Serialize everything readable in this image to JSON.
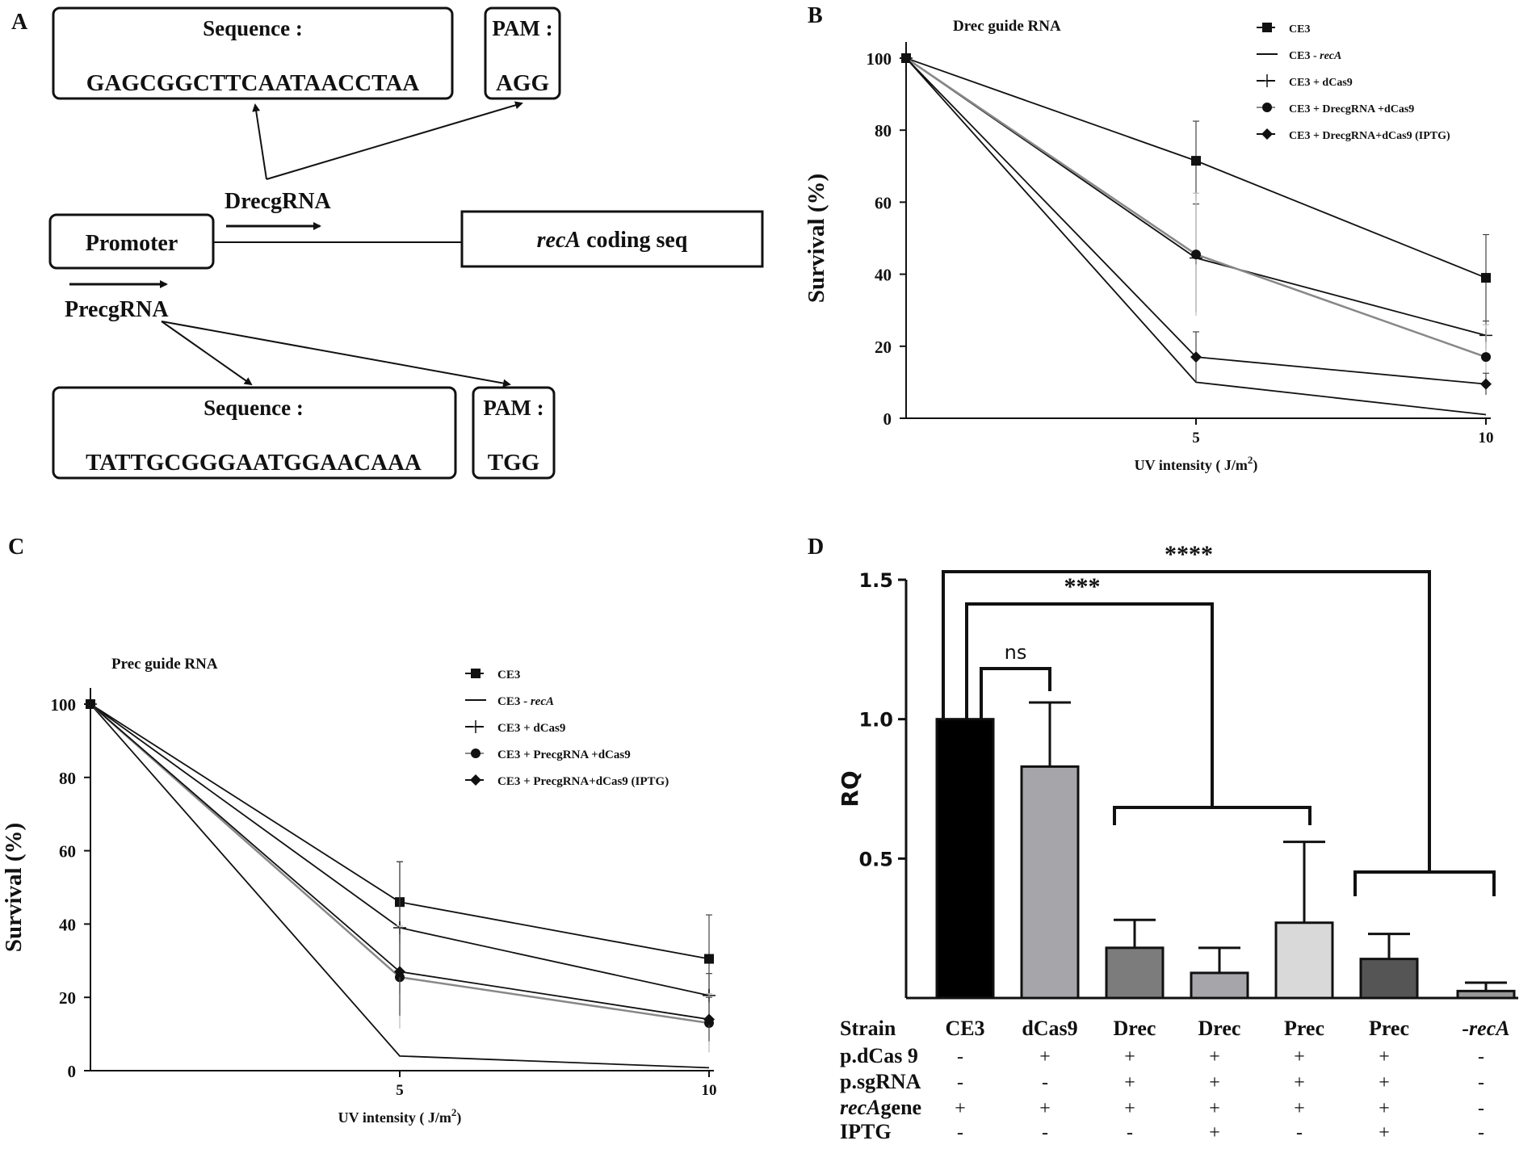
{
  "panel_labels": {
    "a": "A",
    "b": "B",
    "c": "C",
    "d": "D"
  },
  "diagram": {
    "top_sequence": {
      "label": "Sequence :",
      "value": "GAGCGGCTTCAATAACCTAA"
    },
    "top_pam": {
      "label": "PAM :",
      "value": "AGG"
    },
    "drec_label": "DrecgRNA",
    "promoter": "Promoter",
    "coding_italic": "recA",
    "coding_rest": " coding seq",
    "prec_label": "PrecgRNA",
    "bottom_sequence": {
      "label": "Sequence :",
      "value": "TATTGCGGGAATGGAACAAA"
    },
    "bottom_pam": {
      "label": "PAM :",
      "value": "TGG"
    }
  },
  "chart_data": [
    {
      "panel": "B",
      "type": "line",
      "title": "Drec guide RNA",
      "xlabel": "UV intensity ( J/m",
      "xlabel_sup": "2",
      "xlabel_end": ")",
      "ylabel": "Survival (%)",
      "x": [
        0,
        5,
        10
      ],
      "xticks": [
        "5",
        "10"
      ],
      "xtick_values": [
        5,
        10
      ],
      "ylim": [
        0,
        100
      ],
      "yticks": [
        "0",
        "20",
        "40",
        "60",
        "80",
        "100"
      ],
      "legend_position": "top-right",
      "series": [
        {
          "name": "CE3",
          "name_italic": "",
          "marker": "square",
          "color": "#111111",
          "values": [
            100,
            71.5,
            39
          ],
          "err": [
            0,
            11,
            12
          ]
        },
        {
          "name": "CE3 - ",
          "name_italic": "recA",
          "marker": "none",
          "color": "#111111",
          "values": [
            100,
            10,
            1
          ],
          "err": [
            0,
            0,
            0
          ]
        },
        {
          "name": "CE3 + dCas9",
          "name_italic": "",
          "marker": "plus",
          "color": "#111111",
          "values": [
            100,
            44.5,
            23
          ],
          "err": [
            0,
            15,
            4
          ]
        },
        {
          "name": "CE3 + DrecgRNA +dCas9",
          "name_italic": "",
          "marker": "circle",
          "color": "#888888",
          "values": [
            100,
            45.5,
            17
          ],
          "err": [
            0,
            17,
            9
          ]
        },
        {
          "name": "CE3 + DrecgRNA+dCas9  (IPTG)",
          "name_italic": "",
          "marker": "diamond",
          "color": "#111111",
          "values": [
            100,
            17,
            9.5
          ],
          "err": [
            0,
            7,
            3
          ]
        }
      ]
    },
    {
      "panel": "C",
      "type": "line",
      "title": "Prec guide RNA",
      "xlabel": "UV intensity ( J/m",
      "xlabel_sup": "2",
      "xlabel_end": ")",
      "ylabel": "Survival (%)",
      "x": [
        0,
        5,
        10
      ],
      "xticks": [
        "5",
        "10"
      ],
      "xtick_values": [
        5,
        10
      ],
      "ylim": [
        0,
        100
      ],
      "yticks": [
        "0",
        "20",
        "40",
        "60",
        "80",
        "100"
      ],
      "legend_position": "top-right",
      "series": [
        {
          "name": "CE3",
          "name_italic": "",
          "marker": "square",
          "color": "#111111",
          "values": [
            100,
            46,
            30.5
          ],
          "err": [
            0,
            11,
            12
          ]
        },
        {
          "name": "CE3 - ",
          "name_italic": "recA",
          "marker": "none",
          "color": "#111111",
          "values": [
            100,
            4,
            0.8
          ],
          "err": [
            0,
            0,
            0
          ]
        },
        {
          "name": "CE3 + dCas9",
          "name_italic": "",
          "marker": "plus",
          "color": "#111111",
          "values": [
            100,
            39,
            20.5
          ],
          "err": [
            0,
            18,
            6
          ]
        },
        {
          "name": "CE3 + PrecgRNA +dCas9",
          "name_italic": "",
          "marker": "circle",
          "color": "#888888",
          "values": [
            100,
            25.5,
            13
          ],
          "err": [
            0,
            14,
            8
          ]
        },
        {
          "name": "CE3 + PrecgRNA+dCas9  (IPTG)",
          "name_italic": "",
          "marker": "diamond",
          "color": "#111111",
          "values": [
            100,
            27,
            14
          ],
          "err": [
            0,
            12,
            6
          ]
        }
      ]
    },
    {
      "panel": "D",
      "type": "bar",
      "ylabel": "RQ",
      "ylim": [
        0,
        1.5
      ],
      "yticks": [
        "0.5",
        "1.0",
        "1.5"
      ],
      "ytick_values": [
        0.5,
        1.0,
        1.5
      ],
      "categories": [
        "CE3",
        "dCas9",
        "Drec",
        "Drec",
        "Prec",
        "Prec",
        "-recA"
      ],
      "category_italic": [
        false,
        false,
        false,
        false,
        false,
        false,
        true
      ],
      "values": [
        1.0,
        0.83,
        0.18,
        0.09,
        0.27,
        0.14,
        0.025
      ],
      "errors": [
        0,
        0.23,
        0.1,
        0.09,
        0.29,
        0.09,
        0.03
      ],
      "colors": [
        "#000000",
        "#a6a6aa",
        "#7c7c7c",
        "#a6a6aa",
        "#d9d9d9",
        "#555555",
        "#999999"
      ],
      "significance": [
        {
          "label": "ns"
        },
        {
          "label": "***"
        },
        {
          "label": "****"
        }
      ],
      "table": {
        "row_labels": [
          "Strain",
          "p.dCas 9",
          "p.sgRNA",
          "gene",
          "IPTG"
        ],
        "row_label_italic_prefix": [
          "",
          "",
          "",
          "recA",
          ""
        ],
        "rows": [
          [
            "-",
            "+",
            "+",
            "+",
            "+",
            "+",
            "-"
          ],
          [
            "-",
            "-",
            "+",
            "+",
            "+",
            "+",
            "-"
          ],
          [
            "+",
            "+",
            "+",
            "+",
            "+",
            "+",
            "-"
          ],
          [
            "-",
            "-",
            "-",
            "+",
            "-",
            "+",
            "-"
          ]
        ]
      }
    }
  ]
}
